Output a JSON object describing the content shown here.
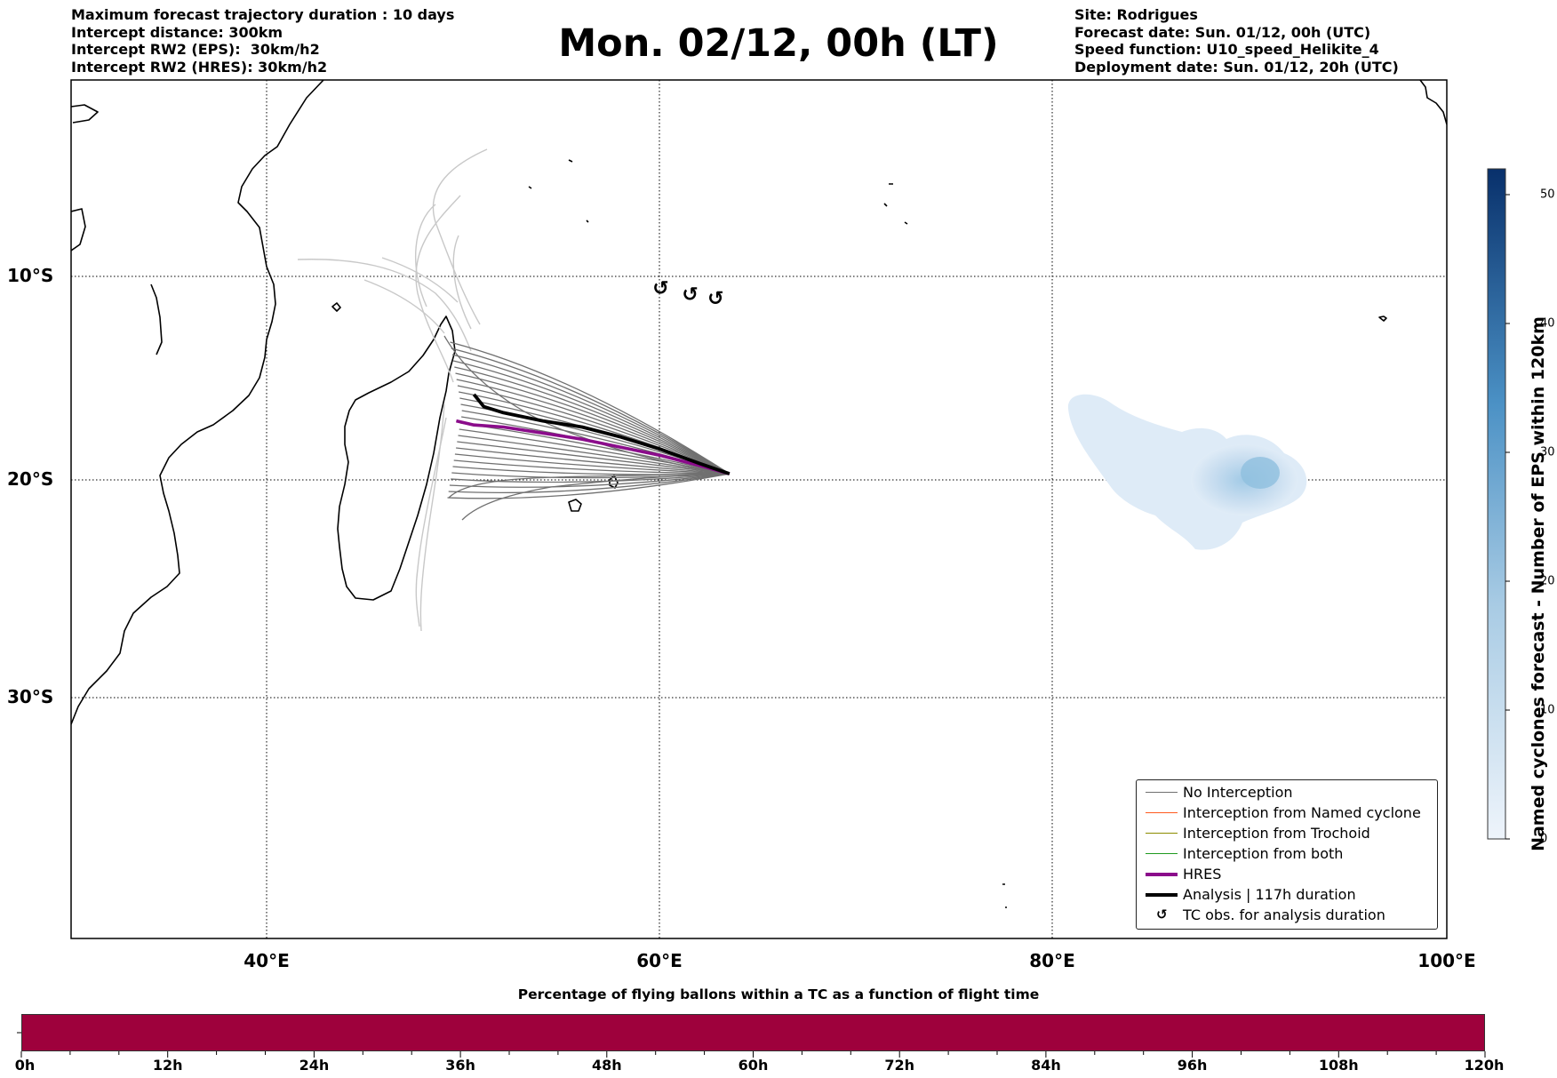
{
  "header_left": {
    "line1": "Maximum forecast trajectory duration : 10 days",
    "line2": "Intercept distance: 300km",
    "line3": "Intercept RW2 (EPS):  30km/h2",
    "line4": "Intercept RW2 (HRES): 30km/h2"
  },
  "title": "Mon. 02/12, 00h (LT)",
  "header_right": {
    "line1": "Site: Rodrigues",
    "line2": "Forecast date: Sun. 01/12, 00h (UTC)",
    "line3": "Speed function: U10_speed_Helikite_4",
    "line4": "Deployment date: Sun. 01/12, 20h (UTC)"
  },
  "map": {
    "lon_range": [
      30,
      100
    ],
    "lat_range": [
      -43.5,
      -1
    ],
    "lat_ticks": [
      "10°S",
      "20°S",
      "30°S"
    ],
    "lon_ticks": [
      "40°E",
      "60°E",
      "80°E",
      "100°E"
    ],
    "tc_symbol": "↺",
    "tc_obs": [
      [
        60.0,
        -10.6
      ],
      [
        61.5,
        -10.9
      ],
      [
        62.8,
        -11.1
      ]
    ],
    "hres_track": [
      [
        49.6,
        -17.1
      ],
      [
        50.5,
        -17.3
      ],
      [
        52,
        -17.4
      ],
      [
        54,
        -17.7
      ],
      [
        56,
        -18.0
      ],
      [
        58,
        -18.4
      ],
      [
        60,
        -18.8
      ],
      [
        62,
        -19.3
      ],
      [
        63.5,
        -19.7
      ]
    ],
    "analysis_track": [
      [
        50.5,
        -15.8
      ],
      [
        51,
        -16.4
      ],
      [
        52,
        -16.7
      ],
      [
        54,
        -17.1
      ],
      [
        56,
        -17.4
      ],
      [
        58,
        -17.9
      ],
      [
        60,
        -18.5
      ],
      [
        62,
        -19.2
      ],
      [
        63.5,
        -19.7
      ]
    ],
    "density_blob_center": [
      90.6,
      -20.0
    ],
    "colors": {
      "hres": "#8b0c8b",
      "analysis": "#000000",
      "no_interception": "#707070",
      "named": "#ff5a1e",
      "trochoid": "#8b8b00",
      "both": "#1f9a1f",
      "light_tracks": "#c8c8c8"
    }
  },
  "legend": {
    "items": [
      {
        "label": "No Interception",
        "color": "#707070",
        "width": 1.5
      },
      {
        "label": "Interception from Named cyclone",
        "color": "#ff5a1e",
        "width": 1.5
      },
      {
        "label": "Interception from Trochoid",
        "color": "#8b8b00",
        "width": 1.5
      },
      {
        "label": "Interception from both",
        "color": "#1f9a1f",
        "width": 1.5
      },
      {
        "label": "HRES",
        "color": "#8b0c8b",
        "width": 4
      },
      {
        "label": "Analysis | 117h duration",
        "color": "#000000",
        "width": 4
      }
    ],
    "tc_label": "TC obs. for analysis duration",
    "tc_symbol": "↺"
  },
  "colorbar": {
    "label": "Named cyclones forecast - Number of EPS within 120km",
    "range": [
      0,
      52
    ],
    "ticks": [
      "0",
      "10",
      "20",
      "30",
      "40",
      "50"
    ],
    "color_low": "#eef4fb",
    "color_high": "#08306b"
  },
  "time_bar": {
    "title": "Percentage of flying ballons within a TC as a function of flight time",
    "color": "#9e013c",
    "labels": [
      "0h",
      "12h",
      "24h",
      "36h",
      "48h",
      "60h",
      "72h",
      "84h",
      "96h",
      "108h",
      "120h"
    ]
  }
}
